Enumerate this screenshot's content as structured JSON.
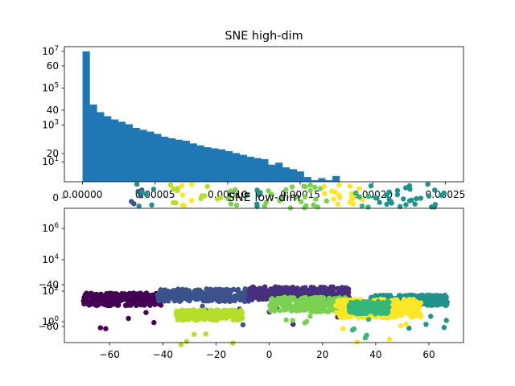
{
  "chart_data": [
    {
      "type": "bar",
      "title": "SNE high-dim",
      "xlabel": "",
      "ylabel": "",
      "color": "#1f77b4",
      "xlim": [
        -1.25e-05,
        0.0002625
      ],
      "x_ticks": [
        "0.00000",
        "0.00005",
        "0.00010",
        "0.00015",
        "0.00020",
        "0.00025"
      ],
      "x_tick_values": [
        0,
        5e-05,
        0.0001,
        0.00015,
        0.0002,
        0.00025
      ],
      "y_ticks_log": [
        {
          "label": "10",
          "exp": "1",
          "value": 10
        },
        {
          "label": "10",
          "exp": "3",
          "value": 1000
        },
        {
          "label": "10",
          "exp": "5",
          "value": 100000
        },
        {
          "label": "10",
          "exp": "7",
          "value": 10000000
        }
      ],
      "y_ticks_overlay": [
        {
          "label": "0",
          "value": 0
        },
        {
          "label": "20",
          "value": 20
        },
        {
          "label": "40",
          "value": 40
        },
        {
          "label": "60",
          "value": 60
        }
      ],
      "bins": {
        "start": 0,
        "width": 4.92e-06,
        "counts": [
          10000000,
          13000,
          5000,
          3000,
          2000,
          1500,
          1100,
          700,
          550,
          440,
          330,
          230,
          190,
          160,
          140,
          100,
          78,
          62,
          54,
          48,
          38,
          30,
          24,
          19,
          16,
          14,
          7,
          9,
          5,
          4,
          3,
          1.5,
          1,
          1.3,
          1,
          1.7,
          0.8,
          0.8,
          0,
          0,
          0.8
        ]
      }
    },
    {
      "type": "scatter",
      "title": "SNE low-dim",
      "xlabel": "",
      "ylabel": "",
      "xlim": [
        -77,
        73
      ],
      "x_ticks": [
        "−60",
        "−40",
        "−20",
        "0",
        "20",
        "40",
        "60"
      ],
      "x_tick_values": [
        -60,
        -40,
        -20,
        0,
        20,
        40,
        60
      ],
      "y_ticks_log": [
        {
          "label": "10",
          "exp": "0",
          "value": 1
        },
        {
          "label": "10",
          "exp": "2",
          "value": 100
        },
        {
          "label": "10",
          "exp": "4",
          "value": 10000
        },
        {
          "label": "10",
          "exp": "6",
          "value": 1000000
        }
      ],
      "y_ticks_overlay": [
        {
          "label": "−60",
          "value": -60
        },
        {
          "label": "−40",
          "value": -40
        }
      ],
      "colormap": "viridis",
      "clusters": [
        {
          "color": "#440154",
          "xmin": -70,
          "xmax": -40,
          "ymin": -50,
          "ymax": -44
        },
        {
          "color": "#3b528b",
          "xmin": -42,
          "xmax": -5,
          "ymin": -48,
          "ymax": -42
        },
        {
          "color": "#472f7d",
          "xmin": -8,
          "xmax": 30,
          "ymin": -47,
          "ymax": -41
        },
        {
          "color": "#21918c",
          "xmin": 38,
          "xmax": 67,
          "ymin": -50,
          "ymax": -45
        },
        {
          "color": "#7ad151",
          "xmin": 0,
          "xmax": 30,
          "ymin": -53,
          "ymax": -46
        },
        {
          "color": "#fde725",
          "xmin": 25,
          "xmax": 57,
          "ymin": -56,
          "ymax": -47
        },
        {
          "color": "#b5de2b",
          "xmin": -35,
          "xmax": -10,
          "ymin": -57,
          "ymax": -52
        },
        {
          "color": "#35b779",
          "xmin": 30,
          "xmax": 45,
          "ymin": -54,
          "ymax": -48
        }
      ]
    }
  ]
}
